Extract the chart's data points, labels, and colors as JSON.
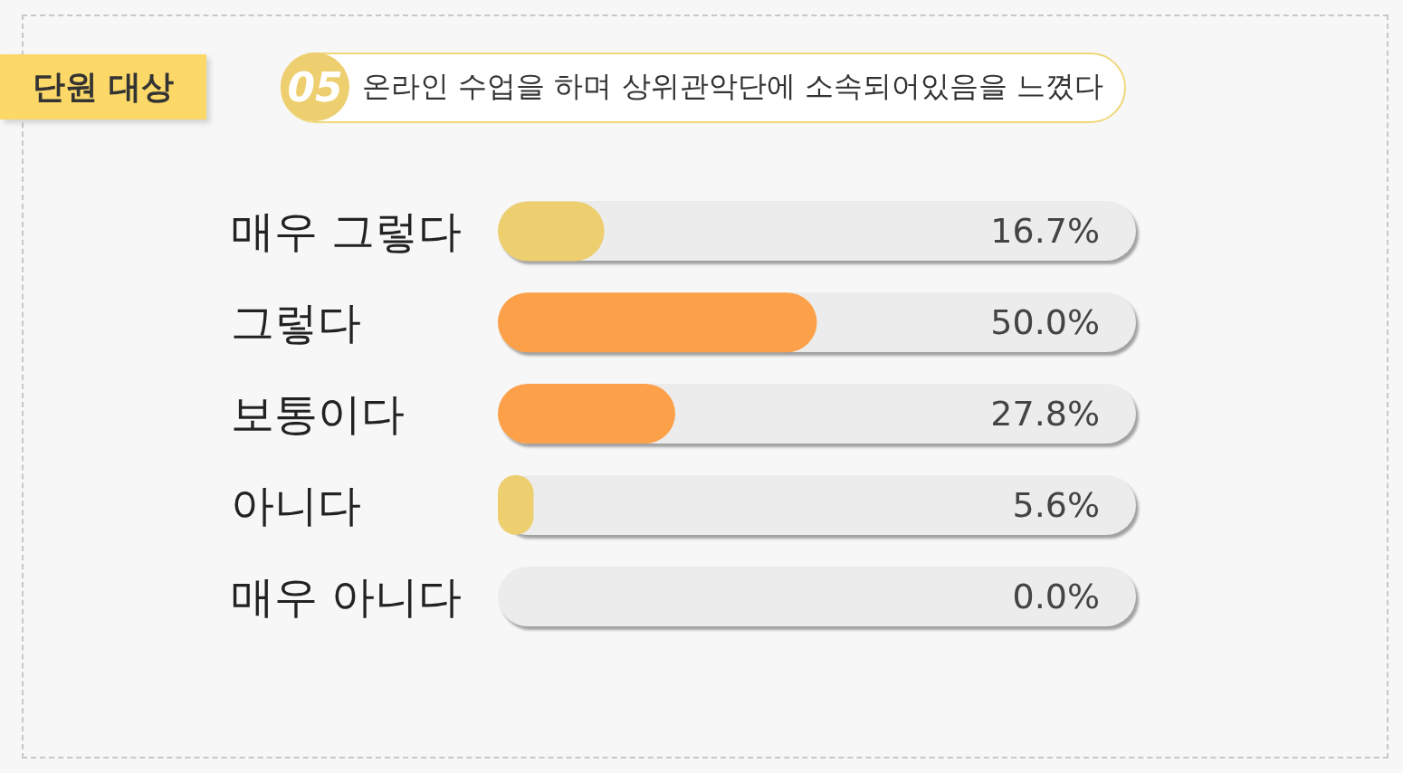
{
  "chart_data": {
    "type": "bar",
    "orientation": "horizontal",
    "title": "온라인 수업을 하며 상위관악단에 소속되어있음을 느꼈다",
    "subtitle": "단원 대상",
    "annotations": [
      "05"
    ],
    "categories": [
      "매우 그렇다",
      "그렇다",
      "보통이다",
      "아니다",
      "매우 아니다"
    ],
    "values": [
      16.7,
      50.0,
      27.8,
      5.6,
      0.0
    ],
    "value_labels": [
      "16.7%",
      "50.0%",
      "27.8%",
      "5.6%",
      "0.0%"
    ],
    "colors": [
      "#edcf70",
      "#fca14a",
      "#fca14a",
      "#edcf70",
      "#edcf70"
    ],
    "xlim": [
      0,
      100
    ],
    "tick_labels": "y"
  }
}
